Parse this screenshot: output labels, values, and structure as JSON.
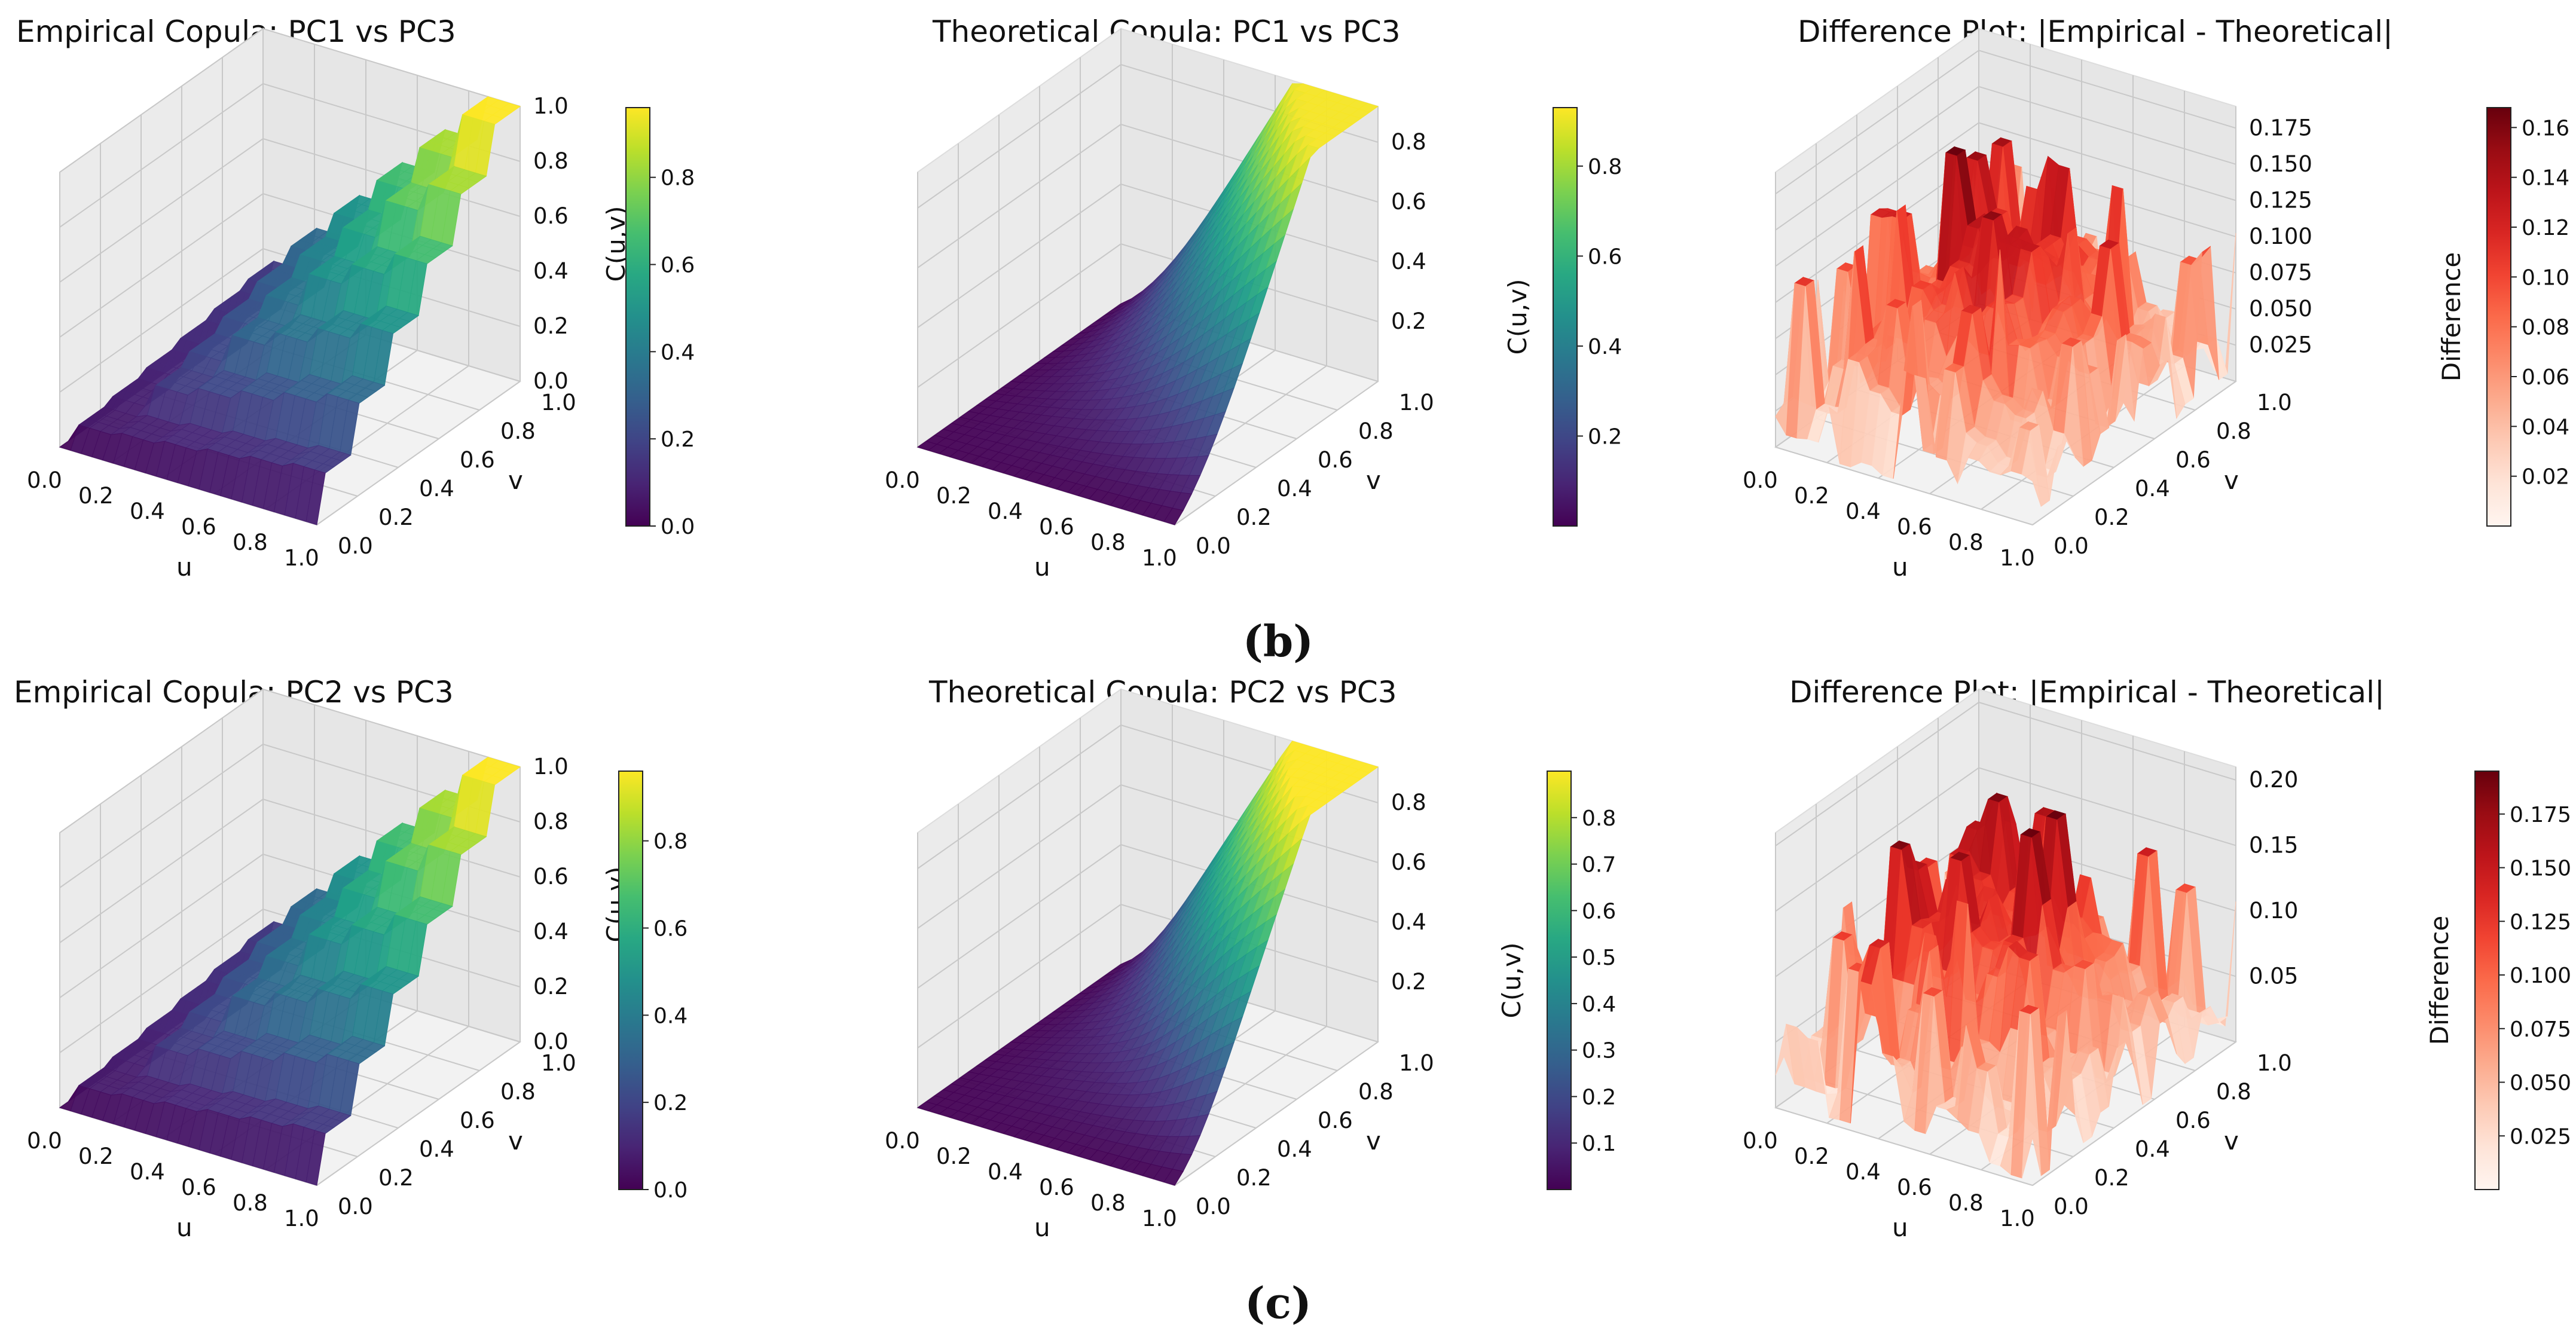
{
  "colors": {
    "viridis": "viridis",
    "reds": "reds",
    "pane": "#f2f2f2",
    "grid": "#c8c8c8"
  },
  "panel_labels": [
    "(b)",
    "(c)"
  ],
  "chart_data": [
    {
      "type": "surface3d",
      "surface": "empirical",
      "title": "Empirical Copula: PC1 vs PC3",
      "xlabel": "u",
      "ylabel": "v",
      "zlabel": "C(u,v)",
      "cmap": "viridis",
      "x_ticks": [
        "0.0",
        "0.2",
        "0.4",
        "0.6",
        "0.8",
        "1.0"
      ],
      "y_ticks": [
        "0.0",
        "0.2",
        "0.4",
        "0.6",
        "0.8",
        "1.0"
      ],
      "z_ticks": [
        "0.0",
        "0.2",
        "0.4",
        "0.6",
        "0.8",
        "1.0"
      ],
      "zlim": [
        0,
        1.0
      ],
      "clim": [
        0,
        0.96
      ],
      "colorbar_ticks": [
        "0.0",
        "0.2",
        "0.4",
        "0.6",
        "0.8"
      ],
      "colorbar_label": ""
    },
    {
      "type": "surface3d",
      "surface": "theoretical",
      "steep": 3.0,
      "edge": 0.05,
      "title": "Theoretical Copula: PC1 vs PC3",
      "xlabel": "u",
      "ylabel": "v",
      "zlabel": "",
      "cmap": "viridis",
      "x_ticks": [
        "0.0",
        "0.2",
        "0.4",
        "0.6",
        "0.8",
        "1.0"
      ],
      "y_ticks": [
        "0.0",
        "0.2",
        "0.4",
        "0.6",
        "0.8",
        "1.0"
      ],
      "z_ticks": [
        "0.2",
        "0.4",
        "0.6",
        "0.8"
      ],
      "z_tick_values": [
        0.2,
        0.4,
        0.6,
        0.8
      ],
      "zlim": [
        0,
        0.92
      ],
      "clim": [
        0.0,
        0.93
      ],
      "colorbar_ticks": [
        "0.2",
        "0.4",
        "0.6",
        "0.8"
      ],
      "colorbar_label": "C(u,v)"
    },
    {
      "type": "surface3d",
      "surface": "difference",
      "seed": 7,
      "zmax": 0.18,
      "title": "Difference Plot: |Empirical - Theoretical|",
      "xlabel": "u",
      "ylabel": "v",
      "zlabel": "",
      "cmap": "reds",
      "x_ticks": [
        "0.0",
        "0.2",
        "0.4",
        "0.6",
        "0.8",
        "1.0"
      ],
      "y_ticks": [
        "0.0",
        "0.2",
        "0.4",
        "0.6",
        "0.8",
        "1.0"
      ],
      "z_ticks": [
        "0.025",
        "0.050",
        "0.075",
        "0.100",
        "0.125",
        "0.150",
        "0.175"
      ],
      "z_tick_values": [
        0.025,
        0.05,
        0.075,
        0.1,
        0.125,
        0.15,
        0.175
      ],
      "zlim": [
        0,
        0.19
      ],
      "clim": [
        0,
        0.168
      ],
      "colorbar_ticks": [
        "0.02",
        "0.04",
        "0.06",
        "0.08",
        "0.10",
        "0.12",
        "0.14",
        "0.16"
      ],
      "colorbar_tick_values": [
        0.02,
        0.04,
        0.06,
        0.08,
        0.1,
        0.12,
        0.14,
        0.16
      ],
      "colorbar_label": "Difference"
    },
    {
      "type": "surface3d",
      "surface": "empirical",
      "title": "Empirical Copula: PC2 vs PC3",
      "xlabel": "u",
      "ylabel": "v",
      "zlabel": "C(u,v)",
      "cmap": "viridis",
      "x_ticks": [
        "0.0",
        "0.2",
        "0.4",
        "0.6",
        "0.8",
        "1.0"
      ],
      "y_ticks": [
        "0.0",
        "0.2",
        "0.4",
        "0.6",
        "0.8",
        "1.0"
      ],
      "z_ticks": [
        "0.0",
        "0.2",
        "0.4",
        "0.6",
        "0.8",
        "1.0"
      ],
      "zlim": [
        0,
        1.0
      ],
      "clim": [
        0,
        0.96
      ],
      "colorbar_ticks": [
        "0.0",
        "0.2",
        "0.4",
        "0.6",
        "0.8"
      ],
      "colorbar_label": ""
    },
    {
      "type": "surface3d",
      "surface": "theoretical",
      "steep": 4.5,
      "edge": 0.08,
      "title": "Theoretical Copula: PC2 vs PC3",
      "xlabel": "u",
      "ylabel": "v",
      "zlabel": "",
      "cmap": "viridis",
      "x_ticks": [
        "0.0",
        "0.2",
        "0.4",
        "0.6",
        "0.8",
        "1.0"
      ],
      "y_ticks": [
        "0.0",
        "0.2",
        "0.4",
        "0.6",
        "0.8",
        "1.0"
      ],
      "z_ticks": [
        "0.2",
        "0.4",
        "0.6",
        "0.8"
      ],
      "z_tick_values": [
        0.2,
        0.4,
        0.6,
        0.8
      ],
      "zlim": [
        0,
        0.92
      ],
      "clim": [
        0.0,
        0.9
      ],
      "colorbar_ticks": [
        "0.1",
        "0.2",
        "0.3",
        "0.4",
        "0.5",
        "0.6",
        "0.7",
        "0.8"
      ],
      "colorbar_tick_values": [
        0.1,
        0.2,
        0.3,
        0.4,
        0.5,
        0.6,
        0.7,
        0.8
      ],
      "colorbar_label": "C(u,v)"
    },
    {
      "type": "surface3d",
      "surface": "difference",
      "seed": 19,
      "zmax": 0.2,
      "title": "Difference Plot: |Empirical - Theoretical|",
      "xlabel": "u",
      "ylabel": "v",
      "zlabel": "",
      "cmap": "reds",
      "x_ticks": [
        "0.0",
        "0.2",
        "0.4",
        "0.6",
        "0.8",
        "1.0"
      ],
      "y_ticks": [
        "0.0",
        "0.2",
        "0.4",
        "0.6",
        "0.8",
        "1.0"
      ],
      "z_ticks": [
        "0.05",
        "0.10",
        "0.15",
        "0.20"
      ],
      "z_tick_values": [
        0.05,
        0.1,
        0.15,
        0.2
      ],
      "zlim": [
        0,
        0.21
      ],
      "clim": [
        0,
        0.195
      ],
      "colorbar_ticks": [
        "0.025",
        "0.050",
        "0.075",
        "0.100",
        "0.125",
        "0.150",
        "0.175"
      ],
      "colorbar_tick_values": [
        0.025,
        0.05,
        0.075,
        0.1,
        0.125,
        0.15,
        0.175
      ],
      "colorbar_label": "Difference"
    }
  ]
}
